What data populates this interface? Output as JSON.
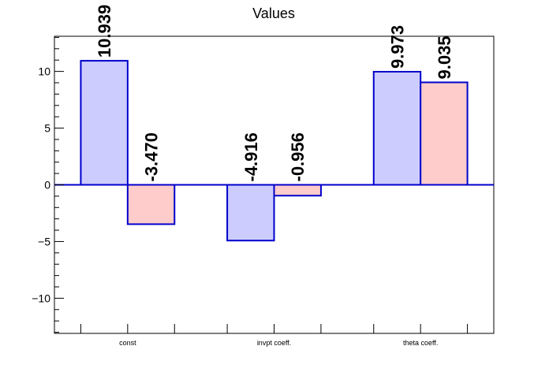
{
  "chart_data": {
    "type": "bar",
    "title": "Values",
    "xlabel": "",
    "ylabel": "",
    "categories": [
      "const",
      "invpt coeff.",
      "theta coeff."
    ],
    "series": [
      {
        "color": "#ccccff",
        "values": [
          10.939,
          -4.916,
          9.973
        ],
        "labels": [
          "10.939",
          "-4.916",
          "9.973"
        ]
      },
      {
        "color": "#ffcccc",
        "values": [
          -3.47,
          -0.956,
          9.035
        ],
        "labels": [
          "-3.470",
          "-0.956",
          "9.035"
        ]
      }
    ],
    "ylim": [
      -13.1,
      13.1
    ],
    "yticks": [
      -10,
      -5,
      0,
      5,
      10
    ],
    "ytick_labels": [
      "−10",
      "−5",
      "0",
      "5",
      "10"
    ],
    "grid": false,
    "legend": false,
    "outline_color": "#0000cc",
    "zero_line_color": "#0000cc"
  }
}
